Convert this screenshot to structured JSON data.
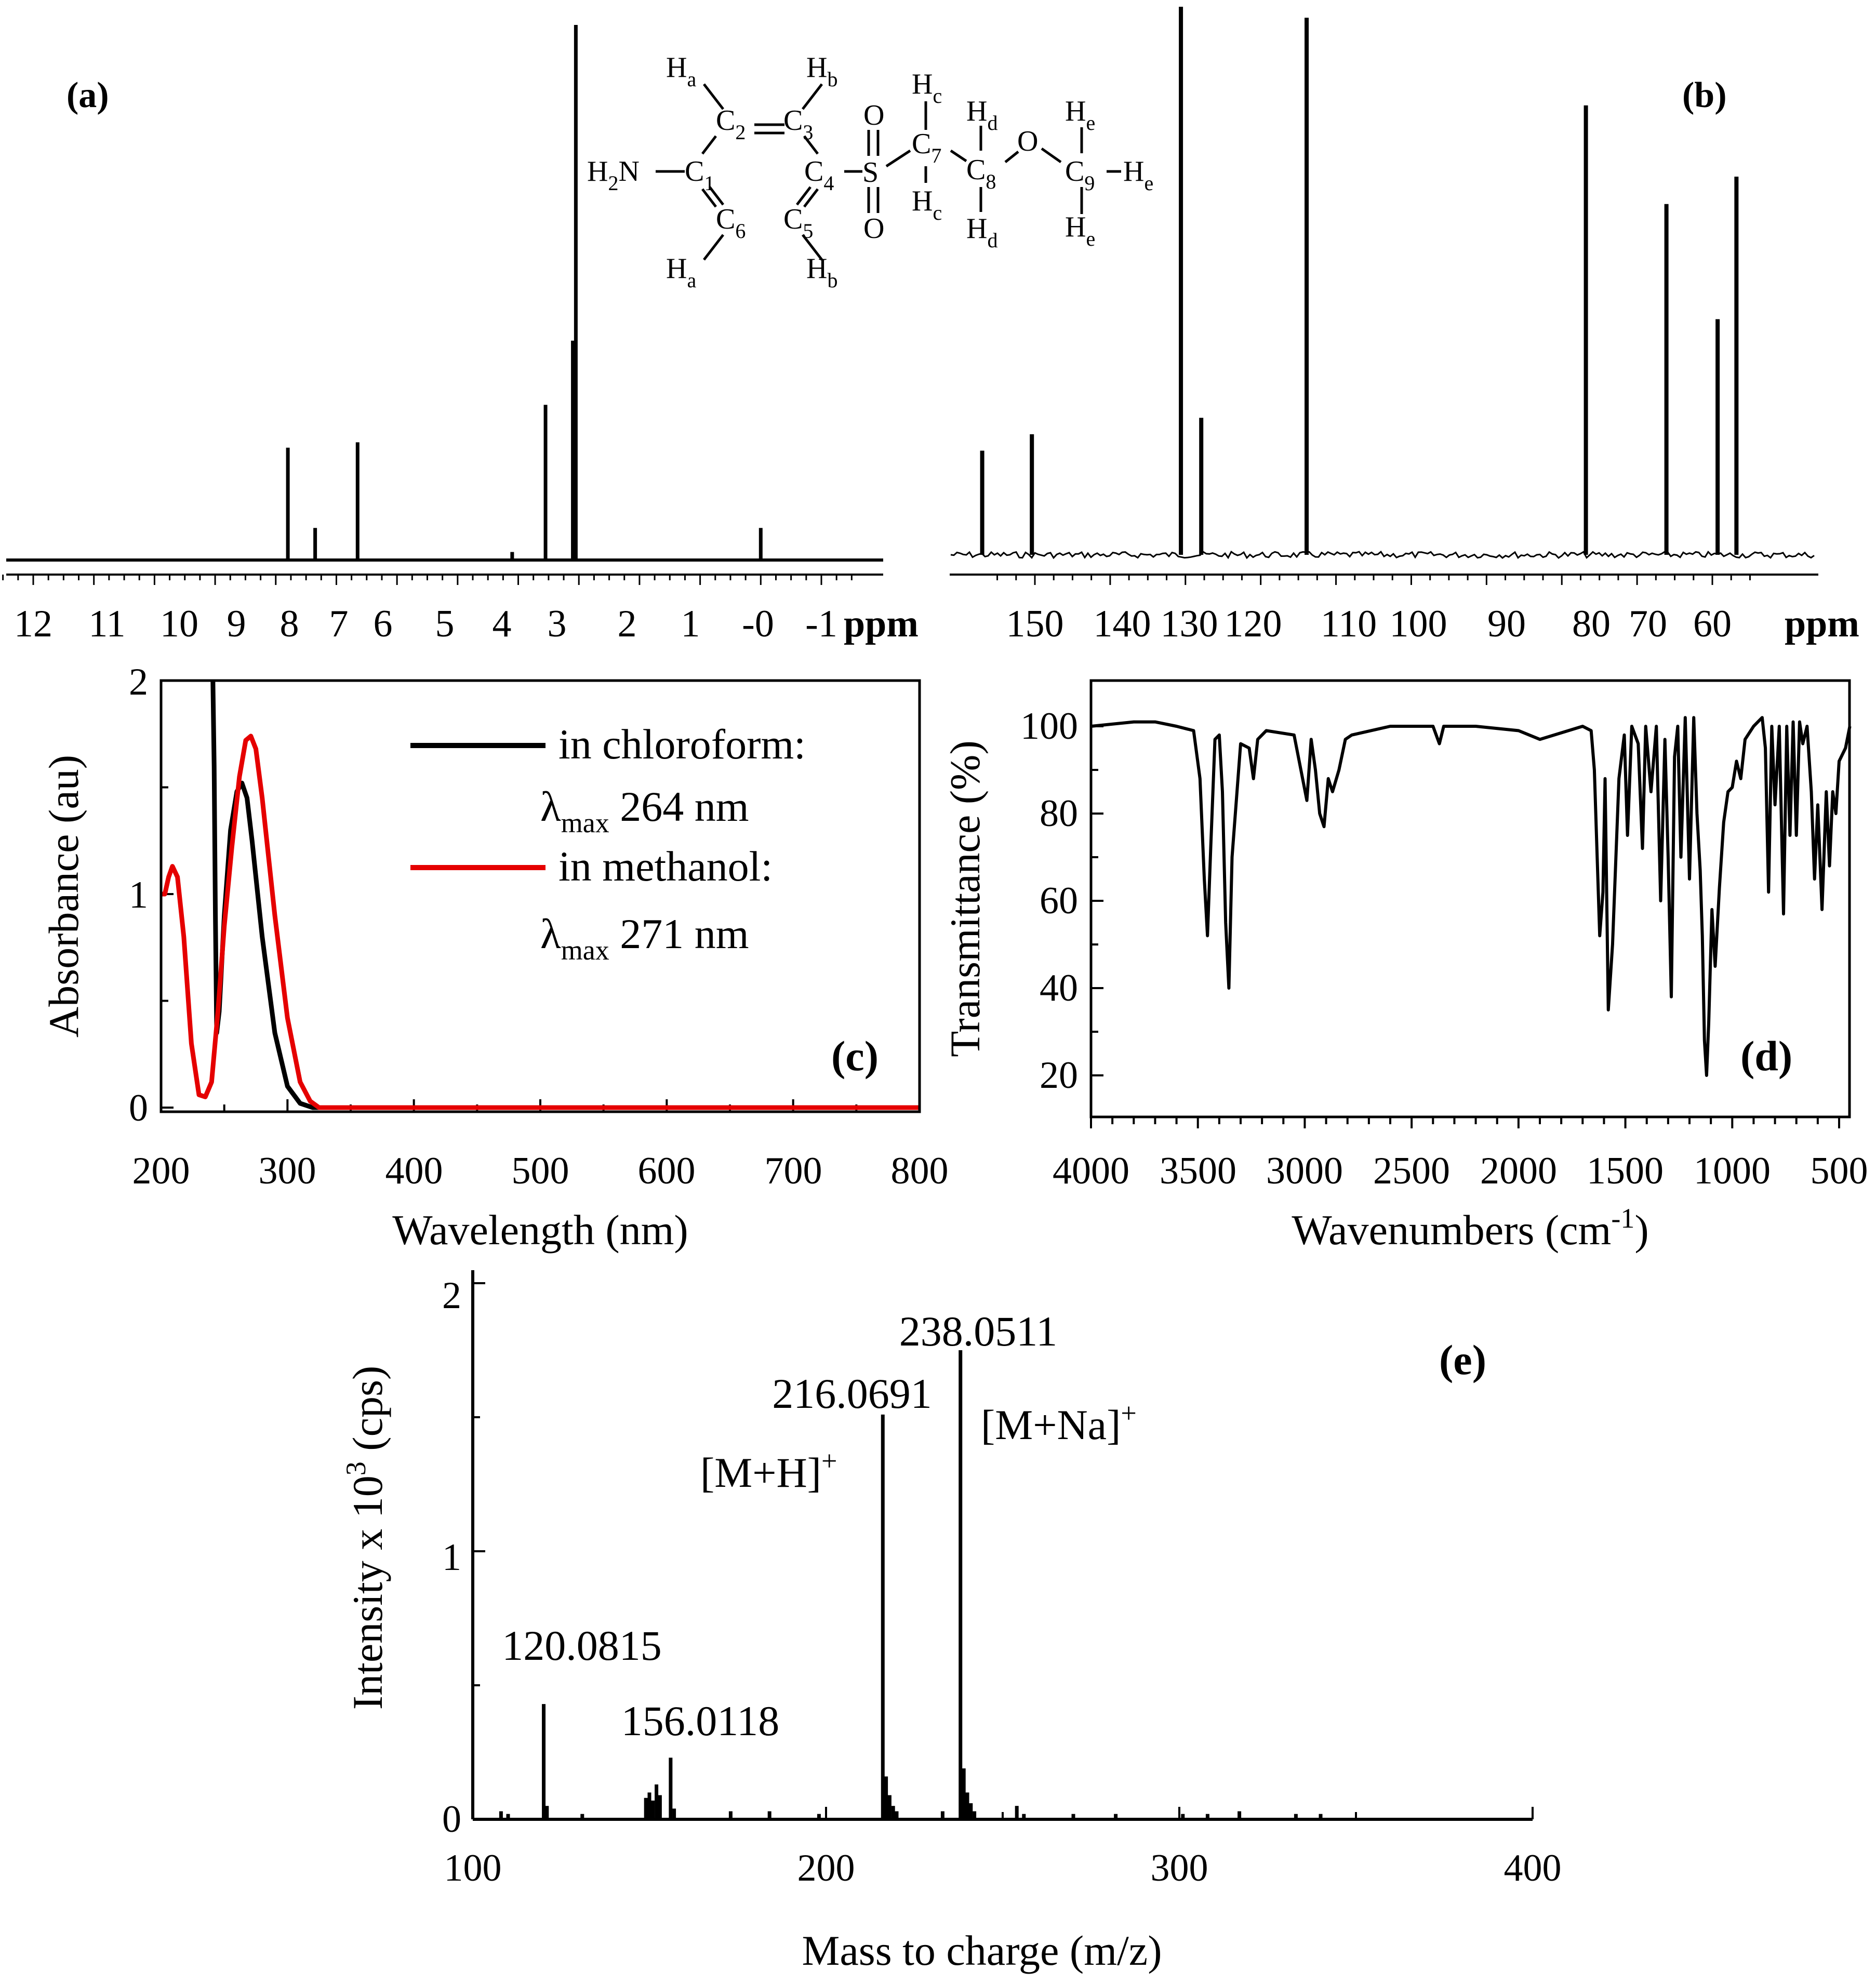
{
  "figure": {
    "panels": [
      {
        "id": "a",
        "type": "nmr",
        "label": "(a)",
        "xlabel": "ppm",
        "xlim": [
          12.5,
          -1.5
        ],
        "ticks": [
          "12",
          "11",
          "10",
          "9",
          "8",
          "7",
          "6",
          "5",
          "4",
          "3",
          "2",
          "1",
          "-0",
          "-1"
        ],
        "tick_values": [
          12,
          11,
          10,
          9,
          8,
          7,
          6,
          5,
          4,
          3,
          2,
          1,
          0,
          -1
        ],
        "peaks": [
          {
            "x": 7.8,
            "h": 0.21
          },
          {
            "x": 7.35,
            "h": 0.06
          },
          {
            "x": 6.65,
            "h": 0.22
          },
          {
            "x": 4.1,
            "h": 0.015
          },
          {
            "x": 3.55,
            "h": 0.29
          },
          {
            "x": 3.1,
            "h": 0.41
          },
          {
            "x": 3.05,
            "h": 1.0
          },
          {
            "x": 0.0,
            "h": 0.06
          }
        ]
      },
      {
        "id": "b",
        "type": "nmr",
        "label": "(b)",
        "xlabel": "ppm",
        "xlim": [
          159,
          53
        ],
        "ticks": [
          "150",
          "140",
          "130",
          "120",
          "110",
          "100",
          "90",
          "80",
          "70",
          "60"
        ],
        "tick_values": [
          150,
          140,
          130,
          120,
          110,
          100,
          90,
          80,
          70,
          60
        ],
        "peaks": [
          {
            "x": 157,
            "h": 0.19
          },
          {
            "x": 150.4,
            "h": 0.22
          },
          {
            "x": 130.6,
            "h": 1.0
          },
          {
            "x": 127.9,
            "h": 0.25
          },
          {
            "x": 113.9,
            "h": 0.98
          },
          {
            "x": 76.8,
            "h": 0.82
          },
          {
            "x": 66.1,
            "h": 0.64
          },
          {
            "x": 59.3,
            "h": 0.43
          },
          {
            "x": 56.8,
            "h": 0.69
          }
        ]
      }
    ],
    "molecule": {
      "atoms": {
        "ha_top": "H",
        "ha_top_sub": "a",
        "hb_top": "H",
        "hb_top_sub": "b",
        "c2": "C",
        "c2_sub": "2",
        "c3": "C",
        "c3_sub": "3",
        "h2n": "H",
        "h2n_sub": "2",
        "h2n_n": "N",
        "c1": "C",
        "c1_sub": "1",
        "c4": "C",
        "c4_sub": "4",
        "c6": "C",
        "c6_sub": "6",
        "c5": "C",
        "c5_sub": "5",
        "ha_bot": "H",
        "ha_bot_sub": "a",
        "hb_bot": "H",
        "hb_bot_sub": "b",
        "o_top": "O",
        "s": "S",
        "o_bot": "O",
        "hc_top": "H",
        "hc_top_sub": "c",
        "c7": "C",
        "c7_sub": "7",
        "hc_bot": "H",
        "hc_bot_sub": "c",
        "hd_top": "H",
        "hd_top_sub": "d",
        "c8": "C",
        "c8_sub": "8",
        "hd_bot": "H",
        "hd_bot_sub": "d",
        "o_ether": "O",
        "he_top": "H",
        "he_top_sub": "e",
        "c9": "C",
        "c9_sub": "9",
        "he_right": "H",
        "he_right_sub": "e",
        "he_bot": "H",
        "he_bot_sub": "e"
      }
    }
  },
  "chart_data": [
    {
      "id": "c",
      "type": "line",
      "label": "(c)",
      "xlabel": "Wavelength (nm)",
      "ylabel": "Absorbance (au)",
      "xlim": [
        200,
        800
      ],
      "ylim": [
        -0.05,
        2.0
      ],
      "x_ticks": [
        "200",
        "300",
        "400",
        "500",
        "600",
        "700",
        "800"
      ],
      "y_ticks": [
        "0",
        "1",
        "2"
      ],
      "legend": {
        "black_label": "in chloroform:",
        "black_lambda": "λ",
        "black_max": "max",
        "black_value": " 264 nm",
        "red_label": "in methanol:",
        "red_lambda": "λ",
        "red_max": "max",
        "red_value": " 271 nm"
      },
      "series": [
        {
          "name": "in chloroform",
          "color": "#000000",
          "x": [
            241,
            242,
            243,
            244,
            246,
            250,
            255,
            260,
            264,
            268,
            272,
            280,
            290,
            300,
            310,
            320,
            340,
            400,
            500,
            600,
            700,
            800
          ],
          "y": [
            2.0,
            1.6,
            0.9,
            0.35,
            0.45,
            0.9,
            1.3,
            1.48,
            1.52,
            1.45,
            1.25,
            0.8,
            0.35,
            0.1,
            0.02,
            0.0,
            0.0,
            0.0,
            0.0,
            0.0,
            0.0,
            0.0
          ]
        },
        {
          "name": "in methanol",
          "color": "#e50000",
          "x": [
            200,
            203,
            206,
            209,
            213,
            218,
            224,
            230,
            235,
            240,
            245,
            250,
            256,
            262,
            267,
            271,
            275,
            280,
            290,
            300,
            310,
            318,
            325,
            340,
            400,
            500,
            600,
            700,
            800
          ],
          "y": [
            1.0,
            1.0,
            1.08,
            1.13,
            1.08,
            0.8,
            0.3,
            0.06,
            0.05,
            0.12,
            0.45,
            0.85,
            1.22,
            1.55,
            1.72,
            1.74,
            1.68,
            1.45,
            0.9,
            0.42,
            0.12,
            0.03,
            0.0,
            0.0,
            0.0,
            0.0,
            0.0,
            0.0,
            0.0
          ]
        }
      ]
    },
    {
      "id": "d",
      "type": "line",
      "label": "(d)",
      "xlabel": "Wavenumbers (cm",
      "xlabel_sup": "-1",
      "xlabel_close": ")",
      "ylabel": "Transmittance (%)",
      "xlim": [
        4000,
        450
      ],
      "ylim": [
        10,
        110
      ],
      "x_ticks": [
        "4000",
        "3500",
        "3000",
        "2500",
        "2000",
        "1500",
        "1000",
        "500"
      ],
      "y_ticks": [
        "20",
        "40",
        "60",
        "80",
        "100"
      ],
      "series": [
        {
          "name": "IR",
          "color": "#000000",
          "x": [
            4000,
            3800,
            3700,
            3600,
            3520,
            3490,
            3470,
            3455,
            3440,
            3420,
            3400,
            3385,
            3370,
            3355,
            3340,
            3300,
            3260,
            3240,
            3220,
            3180,
            3050,
            3010,
            2990,
            2970,
            2950,
            2930,
            2910,
            2890,
            2870,
            2840,
            2810,
            2780,
            2600,
            2400,
            2370,
            2350,
            2200,
            2000,
            1900,
            1700,
            1660,
            1645,
            1632,
            1620,
            1605,
            1595,
            1580,
            1560,
            1530,
            1505,
            1490,
            1470,
            1440,
            1420,
            1405,
            1380,
            1355,
            1335,
            1315,
            1300,
            1285,
            1270,
            1255,
            1240,
            1220,
            1200,
            1180,
            1165,
            1150,
            1140,
            1130,
            1120,
            1110,
            1095,
            1080,
            1060,
            1040,
            1020,
            1000,
            980,
            960,
            940,
            900,
            860,
            845,
            830,
            815,
            800,
            780,
            760,
            745,
            730,
            715,
            700,
            685,
            670,
            650,
            630,
            615,
            600,
            580,
            560,
            545,
            530,
            515,
            500,
            470,
            450
          ],
          "y": [
            100,
            101,
            101,
            100,
            99,
            88,
            65,
            52,
            72,
            97,
            98,
            85,
            55,
            40,
            70,
            96,
            95,
            88,
            97,
            99,
            98,
            88,
            83,
            97,
            90,
            80,
            77,
            88,
            85,
            90,
            97,
            98,
            100,
            100,
            96,
            100,
            100,
            99,
            97,
            100,
            99,
            90,
            70,
            52,
            62,
            88,
            35,
            50,
            88,
            98,
            75,
            100,
            96,
            72,
            100,
            85,
            100,
            60,
            97,
            70,
            38,
            93,
            100,
            70,
            102,
            65,
            102,
            80,
            67,
            52,
            28,
            20,
            32,
            58,
            45,
            63,
            78,
            85,
            86,
            92,
            88,
            97,
            100,
            102,
            95,
            62,
            100,
            82,
            100,
            57,
            100,
            75,
            101,
            75,
            101,
            96,
            100,
            85,
            65,
            82,
            58,
            85,
            68,
            85,
            80,
            92,
            95,
            100
          ]
        }
      ]
    },
    {
      "id": "e",
      "type": "bar",
      "label": "(e)",
      "xlabel": "Mass to charge (m/z)",
      "ylabel": "Intensity x 10",
      "ylabel_sup": "3",
      "ylabel_unit": "(cps)",
      "xlim": [
        100,
        400
      ],
      "ylim": [
        0,
        2
      ],
      "x_ticks": [
        "100",
        "200",
        "300",
        "400"
      ],
      "y_ticks": [
        "0",
        "1",
        "2"
      ],
      "annotations": {
        "peak120": "120.0815",
        "peak156": "156.0118",
        "peak216": "216.0691",
        "peak238": "238.0511",
        "mh": "[M+H]",
        "mh_sup": "+",
        "mna": "[M+Na]",
        "mna_sup": "+"
      },
      "series": [
        {
          "name": "MS",
          "color": "#000000",
          "x": [
            108,
            110,
            120.08,
            121,
            131,
            149,
            150,
            151,
            152,
            153,
            156.01,
            157,
            173,
            184,
            198,
            216.07,
            217,
            218,
            219,
            220,
            233,
            238.05,
            239,
            240,
            241,
            242,
            254,
            256,
            270,
            282,
            301,
            308,
            317,
            333,
            340
          ],
          "y": [
            0.03,
            0.02,
            0.43,
            0.05,
            0.02,
            0.08,
            0.1,
            0.07,
            0.13,
            0.09,
            0.23,
            0.04,
            0.03,
            0.03,
            0.02,
            1.51,
            0.16,
            0.09,
            0.05,
            0.03,
            0.03,
            1.75,
            0.19,
            0.1,
            0.06,
            0.03,
            0.05,
            0.02,
            0.02,
            0.02,
            0.02,
            0.02,
            0.03,
            0.02,
            0.02
          ]
        }
      ]
    }
  ]
}
